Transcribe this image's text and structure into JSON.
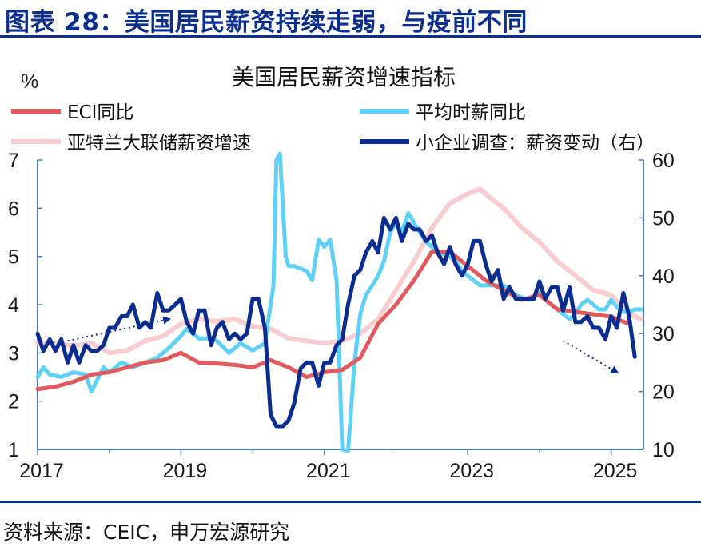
{
  "header": {
    "title": "图表 28：美国居民薪资持续走弱，与疫前不同"
  },
  "footer": {
    "source": "资料来源：CEIC，申万宏源研究"
  },
  "chart_data": {
    "type": "line",
    "title": "美国居民薪资增速指标",
    "left_unit": "%",
    "x_ticks": [
      "2017",
      "2019",
      "2021",
      "2023",
      "2025"
    ],
    "xlim": [
      2017.0,
      2025.45
    ],
    "ylim_left": [
      1,
      7
    ],
    "yticks_left": [
      "1",
      "2",
      "3",
      "4",
      "5",
      "6",
      "7"
    ],
    "ylim_right": [
      10,
      60
    ],
    "yticks_right": [
      "10",
      "20",
      "30",
      "40",
      "50",
      "60"
    ],
    "grid": false,
    "legend_position": "top",
    "colors": {
      "eci": "#e05a5e",
      "avg_hourly": "#5fd1f7",
      "atlanta": "#f8cdcf",
      "nfib": "#0a2d8f",
      "axis": "#4b79b8"
    },
    "series": [
      {
        "key": "eci",
        "name": "ECI同比",
        "axis": "left",
        "points": [
          [
            2017.0,
            2.25
          ],
          [
            2017.25,
            2.3
          ],
          [
            2017.5,
            2.4
          ],
          [
            2017.75,
            2.55
          ],
          [
            2018.0,
            2.6
          ],
          [
            2018.25,
            2.7
          ],
          [
            2018.5,
            2.8
          ],
          [
            2018.75,
            2.85
          ],
          [
            2019.0,
            3.0
          ],
          [
            2019.25,
            2.8
          ],
          [
            2019.5,
            2.78
          ],
          [
            2019.75,
            2.75
          ],
          [
            2020.0,
            2.7
          ],
          [
            2020.25,
            2.85
          ],
          [
            2020.5,
            2.7
          ],
          [
            2020.75,
            2.5
          ],
          [
            2021.0,
            2.6
          ],
          [
            2021.25,
            2.65
          ],
          [
            2021.5,
            2.9
          ],
          [
            2021.75,
            3.6
          ],
          [
            2022.0,
            4.0
          ],
          [
            2022.25,
            4.5
          ],
          [
            2022.5,
            5.1
          ],
          [
            2022.75,
            5.1
          ],
          [
            2023.0,
            4.8
          ],
          [
            2023.25,
            4.5
          ],
          [
            2023.5,
            4.3
          ],
          [
            2023.75,
            4.1
          ],
          [
            2024.0,
            4.2
          ],
          [
            2024.25,
            3.9
          ],
          [
            2024.5,
            3.85
          ],
          [
            2024.75,
            3.8
          ],
          [
            2025.0,
            3.75
          ],
          [
            2025.25,
            3.6
          ]
        ]
      },
      {
        "key": "avg_hourly",
        "name": "平均时薪同比",
        "axis": "left",
        "points": [
          [
            2017.0,
            2.5
          ],
          [
            2017.08,
            2.7
          ],
          [
            2017.17,
            2.55
          ],
          [
            2017.33,
            2.5
          ],
          [
            2017.5,
            2.6
          ],
          [
            2017.67,
            2.55
          ],
          [
            2017.75,
            2.2
          ],
          [
            2017.92,
            2.7
          ],
          [
            2018.0,
            2.6
          ],
          [
            2018.17,
            2.8
          ],
          [
            2018.33,
            2.7
          ],
          [
            2018.5,
            2.8
          ],
          [
            2018.67,
            2.9
          ],
          [
            2018.83,
            3.1
          ],
          [
            2019.0,
            3.35
          ],
          [
            2019.08,
            3.5
          ],
          [
            2019.25,
            3.3
          ],
          [
            2019.42,
            3.3
          ],
          [
            2019.5,
            3.25
          ],
          [
            2019.67,
            3.0
          ],
          [
            2019.83,
            3.2
          ],
          [
            2020.0,
            3.05
          ],
          [
            2020.17,
            3.2
          ],
          [
            2020.29,
            4.4
          ],
          [
            2020.33,
            7.0
          ],
          [
            2020.38,
            7.2
          ],
          [
            2020.46,
            5.0
          ],
          [
            2020.5,
            4.8
          ],
          [
            2020.58,
            4.8
          ],
          [
            2020.75,
            4.7
          ],
          [
            2020.83,
            4.5
          ],
          [
            2020.92,
            5.35
          ],
          [
            2021.0,
            5.2
          ],
          [
            2021.08,
            5.35
          ],
          [
            2021.17,
            4.5
          ],
          [
            2021.25,
            1.0
          ],
          [
            2021.33,
            0.9
          ],
          [
            2021.42,
            2.8
          ],
          [
            2021.5,
            3.8
          ],
          [
            2021.58,
            4.2
          ],
          [
            2021.67,
            4.4
          ],
          [
            2021.75,
            4.6
          ],
          [
            2021.83,
            4.9
          ],
          [
            2021.92,
            5.5
          ],
          [
            2022.0,
            5.7
          ],
          [
            2022.08,
            5.5
          ],
          [
            2022.17,
            5.9
          ],
          [
            2022.25,
            5.7
          ],
          [
            2022.33,
            5.5
          ],
          [
            2022.42,
            5.3
          ],
          [
            2022.5,
            5.2
          ],
          [
            2022.58,
            5.1
          ],
          [
            2022.75,
            5.0
          ],
          [
            2022.83,
            4.9
          ],
          [
            2022.92,
            4.7
          ],
          [
            2023.0,
            4.6
          ],
          [
            2023.08,
            4.5
          ],
          [
            2023.17,
            4.4
          ],
          [
            2023.25,
            4.4
          ],
          [
            2023.42,
            4.4
          ],
          [
            2023.5,
            4.4
          ],
          [
            2023.67,
            4.2
          ],
          [
            2023.83,
            4.1
          ],
          [
            2024.0,
            4.25
          ],
          [
            2024.08,
            4.1
          ],
          [
            2024.25,
            3.9
          ],
          [
            2024.42,
            3.7
          ],
          [
            2024.5,
            3.8
          ],
          [
            2024.58,
            4.0
          ],
          [
            2024.67,
            4.1
          ],
          [
            2024.75,
            4.0
          ],
          [
            2024.83,
            3.9
          ],
          [
            2024.92,
            3.9
          ],
          [
            2025.0,
            4.1
          ],
          [
            2025.08,
            3.95
          ],
          [
            2025.17,
            3.85
          ],
          [
            2025.25,
            3.85
          ],
          [
            2025.33,
            3.9
          ],
          [
            2025.42,
            3.9
          ]
        ]
      },
      {
        "key": "atlanta",
        "name": "亚特兰大联储薪资增速",
        "axis": "left",
        "points": [
          [
            2017.0,
            3.2
          ],
          [
            2017.25,
            3.2
          ],
          [
            2017.5,
            3.15
          ],
          [
            2017.75,
            3.2
          ],
          [
            2018.0,
            3.0
          ],
          [
            2018.25,
            3.05
          ],
          [
            2018.5,
            3.25
          ],
          [
            2018.75,
            3.35
          ],
          [
            2019.0,
            3.6
          ],
          [
            2019.25,
            3.7
          ],
          [
            2019.5,
            3.65
          ],
          [
            2019.75,
            3.7
          ],
          [
            2020.0,
            3.55
          ],
          [
            2020.25,
            3.5
          ],
          [
            2020.5,
            3.3
          ],
          [
            2020.75,
            3.25
          ],
          [
            2021.0,
            3.2
          ],
          [
            2021.25,
            3.25
          ],
          [
            2021.5,
            3.4
          ],
          [
            2021.75,
            3.7
          ],
          [
            2022.0,
            4.3
          ],
          [
            2022.25,
            4.9
          ],
          [
            2022.5,
            5.6
          ],
          [
            2022.75,
            6.1
          ],
          [
            2023.0,
            6.3
          ],
          [
            2023.17,
            6.4
          ],
          [
            2023.33,
            6.2
          ],
          [
            2023.5,
            6.0
          ],
          [
            2023.75,
            5.6
          ],
          [
            2024.0,
            5.3
          ],
          [
            2024.25,
            4.9
          ],
          [
            2024.5,
            4.6
          ],
          [
            2024.75,
            4.3
          ],
          [
            2025.0,
            4.2
          ],
          [
            2025.25,
            3.8
          ],
          [
            2025.42,
            3.7
          ]
        ]
      },
      {
        "key": "nfib",
        "name": "小企业调查：薪资变动（右）",
        "axis": "right",
        "points": [
          [
            2017.0,
            30
          ],
          [
            2017.08,
            27
          ],
          [
            2017.17,
            29
          ],
          [
            2017.25,
            27
          ],
          [
            2017.33,
            29
          ],
          [
            2017.42,
            25
          ],
          [
            2017.5,
            28
          ],
          [
            2017.58,
            25
          ],
          [
            2017.67,
            28
          ],
          [
            2017.75,
            27
          ],
          [
            2017.83,
            27
          ],
          [
            2017.92,
            28
          ],
          [
            2018.0,
            31
          ],
          [
            2018.08,
            31
          ],
          [
            2018.17,
            33
          ],
          [
            2018.25,
            33
          ],
          [
            2018.33,
            35
          ],
          [
            2018.42,
            31
          ],
          [
            2018.5,
            32
          ],
          [
            2018.58,
            31
          ],
          [
            2018.67,
            37
          ],
          [
            2018.75,
            34
          ],
          [
            2018.83,
            34
          ],
          [
            2018.92,
            35
          ],
          [
            2019.0,
            36
          ],
          [
            2019.08,
            32
          ],
          [
            2019.17,
            30
          ],
          [
            2019.25,
            34
          ],
          [
            2019.33,
            34
          ],
          [
            2019.42,
            28
          ],
          [
            2019.5,
            31
          ],
          [
            2019.58,
            32
          ],
          [
            2019.67,
            29
          ],
          [
            2019.75,
            30
          ],
          [
            2019.83,
            29
          ],
          [
            2019.92,
            30
          ],
          [
            2020.0,
            36
          ],
          [
            2020.08,
            36
          ],
          [
            2020.17,
            31
          ],
          [
            2020.25,
            16
          ],
          [
            2020.33,
            14
          ],
          [
            2020.42,
            14
          ],
          [
            2020.5,
            15
          ],
          [
            2020.58,
            18
          ],
          [
            2020.67,
            24
          ],
          [
            2020.75,
            25
          ],
          [
            2020.83,
            25
          ],
          [
            2020.92,
            21
          ],
          [
            2021.0,
            25
          ],
          [
            2021.08,
            25
          ],
          [
            2021.17,
            28
          ],
          [
            2021.25,
            29
          ],
          [
            2021.33,
            35
          ],
          [
            2021.42,
            40
          ],
          [
            2021.5,
            41
          ],
          [
            2021.58,
            44
          ],
          [
            2021.67,
            46
          ],
          [
            2021.75,
            44
          ],
          [
            2021.83,
            50
          ],
          [
            2021.92,
            48
          ],
          [
            2022.0,
            50
          ],
          [
            2022.08,
            46
          ],
          [
            2022.17,
            49
          ],
          [
            2022.25,
            48
          ],
          [
            2022.33,
            48
          ],
          [
            2022.42,
            46
          ],
          [
            2022.5,
            47
          ],
          [
            2022.58,
            44
          ],
          [
            2022.67,
            42
          ],
          [
            2022.75,
            45
          ],
          [
            2022.83,
            42
          ],
          [
            2022.92,
            40
          ],
          [
            2023.0,
            42
          ],
          [
            2023.08,
            46
          ],
          [
            2023.17,
            46
          ],
          [
            2023.25,
            42
          ],
          [
            2023.33,
            39
          ],
          [
            2023.42,
            41
          ],
          [
            2023.5,
            36
          ],
          [
            2023.58,
            38
          ],
          [
            2023.67,
            36
          ],
          [
            2023.75,
            36
          ],
          [
            2023.83,
            36
          ],
          [
            2023.92,
            36
          ],
          [
            2024.0,
            39
          ],
          [
            2024.08,
            36
          ],
          [
            2024.17,
            38
          ],
          [
            2024.25,
            38
          ],
          [
            2024.33,
            34
          ],
          [
            2024.42,
            38
          ],
          [
            2024.5,
            32
          ],
          [
            2024.58,
            32
          ],
          [
            2024.67,
            33
          ],
          [
            2024.75,
            31
          ],
          [
            2024.83,
            31
          ],
          [
            2024.92,
            29
          ],
          [
            2025.0,
            33
          ],
          [
            2025.08,
            31
          ],
          [
            2025.17,
            37
          ],
          [
            2025.25,
            33
          ],
          [
            2025.33,
            26
          ]
        ]
      }
    ],
    "annotations": [
      {
        "type": "dotted-arrow",
        "direction": "up-right",
        "from": [
          2017.42,
          3.25
        ],
        "to": [
          2018.83,
          3.7
        ]
      },
      {
        "type": "dotted-arrow",
        "direction": "down-right",
        "from": [
          2024.33,
          3.25
        ],
        "to": [
          2025.08,
          2.6
        ]
      }
    ]
  }
}
